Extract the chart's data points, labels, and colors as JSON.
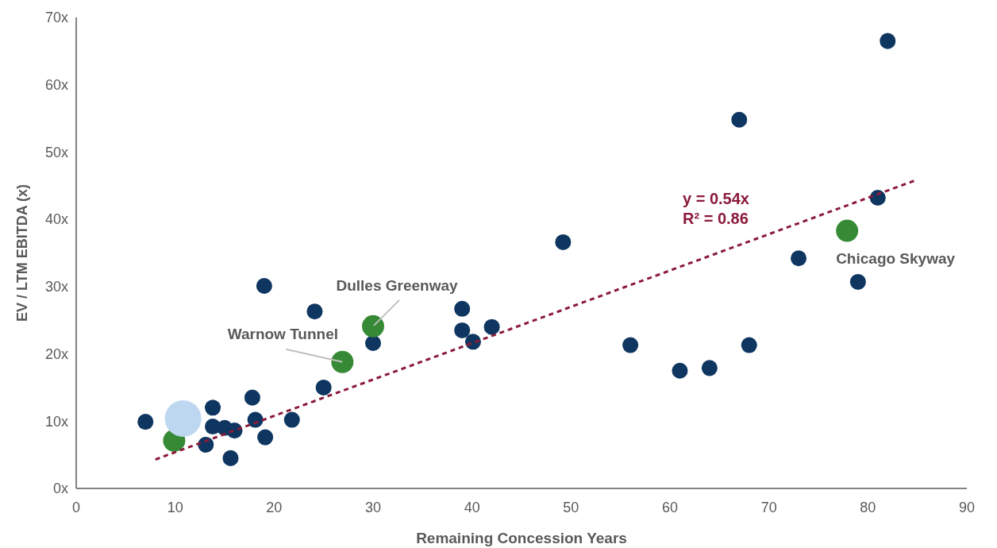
{
  "chart_data": {
    "type": "bubble",
    "xlabel": "Remaining Concession Years",
    "ylabel": "EV / LTM EBITDA (x)",
    "xlim": [
      0,
      90
    ],
    "xticks": [
      0,
      10,
      20,
      30,
      40,
      50,
      60,
      70,
      80,
      90
    ],
    "ylim": [
      0,
      70
    ],
    "yticks": [
      {
        "value": 0,
        "label": "0x"
      },
      {
        "value": 10,
        "label": "10x"
      },
      {
        "value": 20,
        "label": "20x"
      },
      {
        "value": 30,
        "label": "30x"
      },
      {
        "value": 40,
        "label": "40x"
      },
      {
        "value": 50,
        "label": "50x"
      },
      {
        "value": 60,
        "label": "60x"
      },
      {
        "value": 70,
        "label": "70x"
      }
    ],
    "grid": false,
    "marker": "circle",
    "series": [
      {
        "type": "line",
        "marker": "none",
        "color": "#8b1a3a",
        "line_style": "dashed",
        "x": [
          8,
          85
        ],
        "values": [
          4.3,
          45.9
        ]
      },
      {
        "color": "#0e3660",
        "x": [
          7,
          13.1,
          13.8,
          13.8,
          15,
          16,
          15.6,
          17.8,
          18.1,
          19.1,
          19,
          21.8,
          24.1,
          25,
          30,
          39,
          39,
          40.1,
          42,
          49.2,
          56,
          61,
          64,
          67,
          68,
          73,
          79,
          81,
          82
        ],
        "values": [
          9.9,
          6.5,
          12,
          9.2,
          9,
          8.6,
          4.5,
          13.5,
          10.2,
          7.6,
          30.1,
          10.2,
          26.3,
          15,
          21.6,
          26.7,
          23.5,
          21.8,
          24,
          36.6,
          21.3,
          17.5,
          17.9,
          54.8,
          21.3,
          34.2,
          30.7,
          43.2,
          66.5
        ],
        "sizes": [
          0.19,
          0.19,
          0.19,
          0.19,
          0.19,
          0.19,
          0.19,
          0.19,
          0.19,
          0.19,
          0.19,
          0.19,
          0.19,
          0.19,
          0.19,
          0.19,
          0.19,
          0.19,
          0.19,
          0.19,
          0.19,
          0.19,
          0.19,
          0.19,
          0.19,
          0.19,
          0.19,
          0.19,
          0.19
        ]
      },
      {
        "color": "#368a36",
        "x": [
          9.9,
          26.9,
          30,
          77.9
        ],
        "values": [
          7.1,
          18.8,
          24.1,
          38.3
        ],
        "sizes": [
          0.37,
          0.37,
          0.37,
          0.37
        ]
      },
      {
        "color": "#bdd7f0",
        "x": [
          10.8
        ],
        "values": [
          10.4
        ],
        "sizes": [
          1
        ]
      }
    ],
    "annotations": [
      "y = 0.54x",
      "R² = 0.86",
      {
        "text": "Dulles Greenway",
        "x": 30,
        "y": 24.1
      },
      {
        "text": "Warnow Tunnel",
        "x": 26.9,
        "y": 18.8
      },
      {
        "text": "Chicago Skyway",
        "x": 77.9,
        "y": 38.3
      }
    ]
  }
}
